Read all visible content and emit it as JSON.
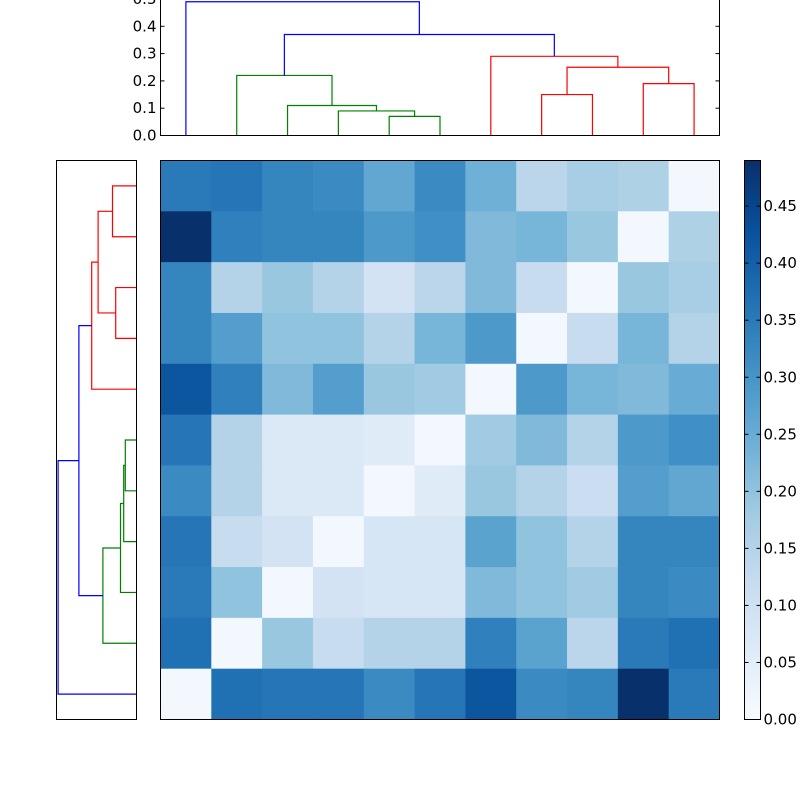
{
  "chart_data": {
    "type": "heatmap",
    "title": "",
    "xlabel": "",
    "ylabel": "",
    "n": 11,
    "colormap": "Blues",
    "matrix": [
      [
        0.35,
        0.36,
        0.33,
        0.32,
        0.26,
        0.32,
        0.24,
        0.14,
        0.17,
        0.16,
        0.01
      ],
      [
        0.49,
        0.34,
        0.33,
        0.33,
        0.29,
        0.31,
        0.22,
        0.23,
        0.19,
        0.01,
        0.16
      ],
      [
        0.33,
        0.15,
        0.19,
        0.15,
        0.09,
        0.14,
        0.22,
        0.12,
        0.01,
        0.19,
        0.17
      ],
      [
        0.33,
        0.28,
        0.2,
        0.2,
        0.15,
        0.23,
        0.29,
        0.01,
        0.12,
        0.23,
        0.15
      ],
      [
        0.42,
        0.34,
        0.22,
        0.28,
        0.19,
        0.18,
        0.01,
        0.29,
        0.23,
        0.22,
        0.25
      ],
      [
        0.36,
        0.15,
        0.07,
        0.07,
        0.06,
        0.01,
        0.18,
        0.22,
        0.15,
        0.29,
        0.31
      ],
      [
        0.32,
        0.15,
        0.07,
        0.07,
        0.01,
        0.06,
        0.19,
        0.15,
        0.11,
        0.28,
        0.26
      ],
      [
        0.36,
        0.12,
        0.09,
        0.01,
        0.08,
        0.08,
        0.27,
        0.2,
        0.15,
        0.33,
        0.33
      ],
      [
        0.35,
        0.2,
        0.01,
        0.09,
        0.08,
        0.08,
        0.22,
        0.2,
        0.18,
        0.33,
        0.32
      ],
      [
        0.37,
        0.01,
        0.19,
        0.12,
        0.15,
        0.15,
        0.34,
        0.27,
        0.14,
        0.35,
        0.37
      ],
      [
        0.01,
        0.37,
        0.36,
        0.36,
        0.32,
        0.36,
        0.42,
        0.32,
        0.33,
        0.49,
        0.35
      ]
    ],
    "colorbar": {
      "range": [
        0.0,
        0.49
      ],
      "ticks": [
        "0.00",
        "0.05",
        "0.10",
        "0.15",
        "0.20",
        "0.25",
        "0.30",
        "0.35",
        "0.40",
        "0.45"
      ]
    },
    "top_dendrogram": {
      "ylim": [
        0.0,
        0.5
      ],
      "ticks": [
        "0.0",
        "0.1",
        "0.2",
        "0.3",
        "0.4",
        "0.5"
      ],
      "colors": {
        "green": "#008000",
        "red": "#ff0000",
        "blue": "#0000ff"
      },
      "links": [
        {
          "color": "green",
          "x1": 5.5,
          "x2": 6.5,
          "y1a": 0.0,
          "y1b": 0.0,
          "h": 0.07
        },
        {
          "color": "green",
          "x1": 4.5,
          "x2": 6.0,
          "y1a": 0.0,
          "y1b": 0.07,
          "h": 0.09
        },
        {
          "color": "green",
          "x1": 3.5,
          "x2": 5.25,
          "y1a": 0.0,
          "y1b": 0.09,
          "h": 0.11
        },
        {
          "color": "green",
          "x1": 2.5,
          "x2": 4.375,
          "y1a": 0.0,
          "y1b": 0.11,
          "h": 0.22
        },
        {
          "color": "red",
          "x1": 8.5,
          "x2": 9.5,
          "y1a": 0.0,
          "y1b": 0.0,
          "h": 0.15
        },
        {
          "color": "red",
          "x1": 10.5,
          "x2": 11.5,
          "y1a": 0.0,
          "y1b": 0.0,
          "h": 0.19
        },
        {
          "color": "red",
          "x1": 9.0,
          "x2": 11.0,
          "y1a": 0.15,
          "y1b": 0.19,
          "h": 0.25
        },
        {
          "color": "red",
          "x1": 7.5,
          "x2": 10.0,
          "y1a": 0.0,
          "y1b": 0.25,
          "h": 0.29
        },
        {
          "color": "blue",
          "x1": 3.4375,
          "x2": 8.75,
          "y1a": 0.22,
          "y1b": 0.29,
          "h": 0.37
        },
        {
          "color": "blue",
          "x1": 1.5,
          "x2": 6.09375,
          "y1a": 0.0,
          "y1b": 0.37,
          "h": 0.49
        }
      ]
    },
    "left_dendrogram": {
      "colors": {
        "green": "#008000",
        "red": "#ff0000",
        "blue": "#0000ff"
      },
      "links": [
        {
          "color": "red",
          "y1": 0.5,
          "y2": 1.5,
          "d1": 0.0,
          "d2": 0.0,
          "h": 0.15
        },
        {
          "color": "red",
          "y1": 2.5,
          "y2": 3.5,
          "d1": 0.0,
          "d2": 0.0,
          "h": 0.13
        },
        {
          "color": "red",
          "y1": 1.0,
          "y2": 3.0,
          "d1": 0.15,
          "d2": 0.13,
          "h": 0.24
        },
        {
          "color": "red",
          "y1": 2.0,
          "y2": 4.5,
          "d1": 0.24,
          "d2": 0.0,
          "h": 0.28
        },
        {
          "color": "green",
          "y1": 5.5,
          "y2": 6.5,
          "d1": 0.0,
          "d2": 0.0,
          "h": 0.07
        },
        {
          "color": "green",
          "y1": 6.0,
          "y2": 7.5,
          "d1": 0.07,
          "d2": 0.0,
          "h": 0.08
        },
        {
          "color": "green",
          "y1": 6.75,
          "y2": 8.5,
          "d1": 0.08,
          "d2": 0.0,
          "h": 0.1
        },
        {
          "color": "green",
          "y1": 7.625,
          "y2": 9.5,
          "d1": 0.1,
          "d2": 0.0,
          "h": 0.21
        },
        {
          "color": "blue",
          "y1": 3.25,
          "y2": 8.5625,
          "d1": 0.28,
          "d2": 0.21,
          "h": 0.36
        },
        {
          "color": "blue",
          "y1": 5.90625,
          "y2": 10.5,
          "d1": 0.36,
          "d2": 0.0,
          "h": 0.49
        }
      ]
    }
  }
}
